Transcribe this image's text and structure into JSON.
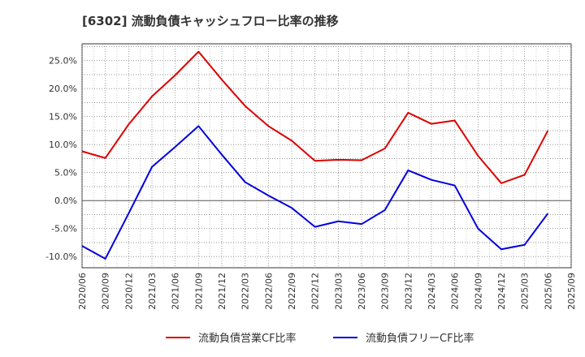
{
  "chart_data": {
    "type": "line",
    "title": "[6302]  流動負債キャッシュフロー比率の推移",
    "xlabel": "",
    "ylabel": "",
    "x": [
      "2020/06",
      "2020/09",
      "2020/12",
      "2021/03",
      "2021/06",
      "2021/09",
      "2021/12",
      "2022/03",
      "2022/06",
      "2022/09",
      "2022/12",
      "2023/03",
      "2023/06",
      "2023/09",
      "2023/12",
      "2024/03",
      "2024/06",
      "2024/09",
      "2024/12",
      "2025/03",
      "2025/06",
      "2025/09"
    ],
    "ylim": [
      -12,
      28
    ],
    "yticks": [
      -10,
      -5,
      0,
      5,
      10,
      15,
      20,
      25
    ],
    "ytick_labels": [
      "-10.0%",
      "-5.0%",
      "0.0%",
      "5.0%",
      "10.0%",
      "15.0%",
      "20.0%",
      "25.0%"
    ],
    "grid": true,
    "legend_position": "bottom",
    "series": [
      {
        "name": "流動負債営業CF比率",
        "color": "#dd0000",
        "values": [
          8.8,
          7.6,
          13.6,
          18.6,
          22.4,
          26.6,
          21.6,
          16.9,
          13.3,
          10.7,
          7.1,
          7.3,
          7.2,
          9.3,
          15.7,
          13.7,
          14.3,
          8.0,
          3.1,
          4.6,
          12.5,
          null
        ]
      },
      {
        "name": "流動負債フリーCF比率",
        "color": "#0000dd",
        "values": [
          -8.1,
          -10.4,
          -2.3,
          6.0,
          9.6,
          13.3,
          8.2,
          3.3,
          0.9,
          -1.3,
          -4.7,
          -3.7,
          -4.2,
          -1.7,
          5.4,
          3.7,
          2.7,
          -5.0,
          -8.7,
          -7.9,
          -2.3,
          null
        ]
      }
    ]
  }
}
